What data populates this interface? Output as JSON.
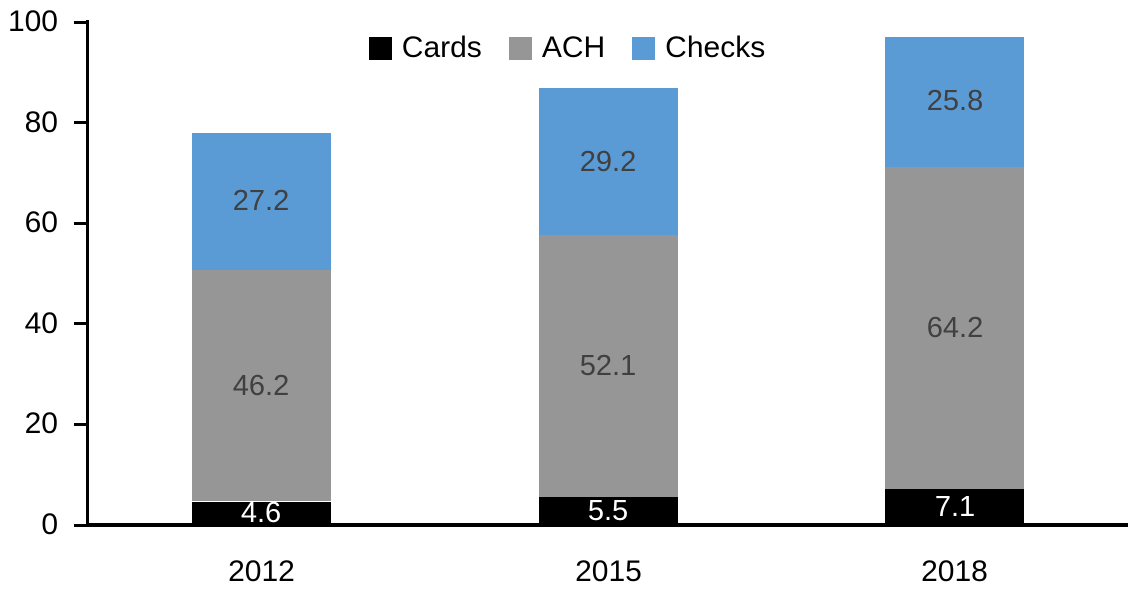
{
  "chart_data": {
    "type": "bar",
    "stacked": true,
    "title": "",
    "categories": [
      "2012",
      "2015",
      "2018"
    ],
    "series": [
      {
        "name": "Cards",
        "color": "#000000",
        "label_color": "#ffffff",
        "values": [
          4.6,
          5.5,
          7.1
        ]
      },
      {
        "name": "ACH",
        "color": "#969696",
        "label_color": "#404040",
        "values": [
          46.2,
          52.1,
          64.2
        ]
      },
      {
        "name": "Checks",
        "color": "#5B9BD5",
        "label_color": "#404040",
        "values": [
          27.2,
          29.2,
          25.8
        ]
      }
    ],
    "totals": [
      78.0,
      86.8,
      97.1
    ],
    "ylim": [
      0,
      100
    ],
    "yticks": [
      0,
      20,
      40,
      60,
      80,
      100
    ],
    "grid": false,
    "value_labels": true,
    "legend_position": "top-center",
    "axis_color": "#000000",
    "background_color": "#ffffff"
  }
}
